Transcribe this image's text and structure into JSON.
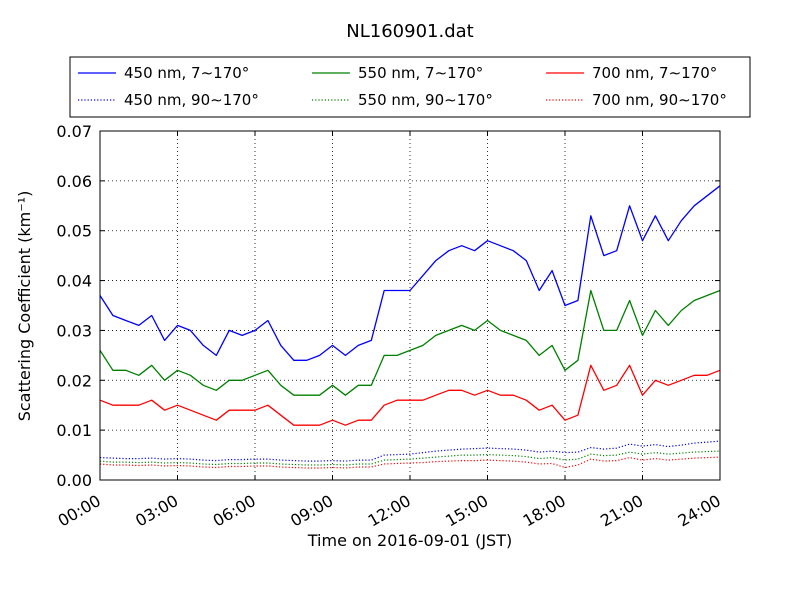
{
  "chart_data": {
    "type": "line",
    "title": "NL160901.dat",
    "xlabel": "Time on 2016-09-01 (JST)",
    "ylabel": "Scattering Coefficient (km⁻¹)",
    "xlim": [
      "2016-09-01 00:00",
      "2016-09-02 00:00"
    ],
    "ylim": [
      0,
      0.07
    ],
    "x_ticks": [
      "00:00",
      "03:00",
      "06:00",
      "09:00",
      "12:00",
      "15:00",
      "18:00",
      "21:00",
      "24:00"
    ],
    "x_tick_hours": [
      0,
      3,
      6,
      9,
      12,
      15,
      18,
      21,
      24
    ],
    "y_ticks": [
      "0.00",
      "0.01",
      "0.02",
      "0.03",
      "0.04",
      "0.05",
      "0.06",
      "0.07"
    ],
    "y_tick_values": [
      0,
      0.01,
      0.02,
      0.03,
      0.04,
      0.05,
      0.06,
      0.07
    ],
    "grid": true,
    "legend_position": "top",
    "x_hours": [
      0,
      0.5,
      1,
      1.5,
      2,
      2.5,
      3,
      3.5,
      4,
      4.5,
      5,
      5.5,
      6,
      6.5,
      7,
      7.5,
      8,
      8.5,
      9,
      9.5,
      10,
      10.5,
      11,
      11.5,
      12,
      12.5,
      13,
      13.5,
      14,
      14.5,
      15,
      15.5,
      16,
      16.5,
      17,
      17.5,
      18,
      18.5,
      19,
      19.5,
      20,
      20.5,
      21,
      21.5,
      22,
      22.5,
      23,
      23.5,
      24
    ],
    "series": [
      {
        "name": "450 nm, 7∼170°",
        "color": "#0000ff",
        "style": "solid",
        "values": [
          0.037,
          0.033,
          0.032,
          0.031,
          0.033,
          0.028,
          0.031,
          0.03,
          0.027,
          0.025,
          0.03,
          0.029,
          0.03,
          0.032,
          0.027,
          0.024,
          0.024,
          0.025,
          0.027,
          0.025,
          0.027,
          0.028,
          0.038,
          0.038,
          0.038,
          0.041,
          0.044,
          0.046,
          0.047,
          0.046,
          0.048,
          0.047,
          0.046,
          0.044,
          0.038,
          0.042,
          0.035,
          0.036,
          0.053,
          0.045,
          0.046,
          0.055,
          0.048,
          0.053,
          0.048,
          0.052,
          0.055,
          0.057,
          0.059
        ]
      },
      {
        "name": "450 nm, 90∼170°",
        "color": "#0000ff",
        "style": "dotted",
        "values": [
          0.0045,
          0.0044,
          0.0043,
          0.0043,
          0.0044,
          0.0042,
          0.0043,
          0.0042,
          0.004,
          0.0039,
          0.0041,
          0.0041,
          0.0042,
          0.0042,
          0.004,
          0.0039,
          0.0038,
          0.0038,
          0.0039,
          0.0038,
          0.004,
          0.004,
          0.005,
          0.0051,
          0.0052,
          0.0055,
          0.0058,
          0.006,
          0.0062,
          0.0063,
          0.0064,
          0.0063,
          0.0062,
          0.006,
          0.0056,
          0.0058,
          0.0055,
          0.0056,
          0.0065,
          0.0062,
          0.0064,
          0.0072,
          0.0068,
          0.0071,
          0.0067,
          0.007,
          0.0074,
          0.0076,
          0.0078
        ]
      },
      {
        "name": "550 nm, 7∼170°",
        "color": "#008000",
        "style": "solid",
        "values": [
          0.026,
          0.022,
          0.022,
          0.021,
          0.023,
          0.02,
          0.022,
          0.021,
          0.019,
          0.018,
          0.02,
          0.02,
          0.021,
          0.022,
          0.019,
          0.017,
          0.017,
          0.017,
          0.019,
          0.017,
          0.019,
          0.019,
          0.025,
          0.025,
          0.026,
          0.027,
          0.029,
          0.03,
          0.031,
          0.03,
          0.032,
          0.03,
          0.029,
          0.028,
          0.025,
          0.027,
          0.022,
          0.024,
          0.038,
          0.03,
          0.03,
          0.036,
          0.029,
          0.034,
          0.031,
          0.034,
          0.036,
          0.037,
          0.038
        ]
      },
      {
        "name": "550 nm, 90∼170°",
        "color": "#008000",
        "style": "dotted",
        "values": [
          0.0038,
          0.0036,
          0.0036,
          0.0035,
          0.0036,
          0.0034,
          0.0035,
          0.0034,
          0.0032,
          0.0031,
          0.0033,
          0.0033,
          0.0034,
          0.0034,
          0.0032,
          0.0031,
          0.003,
          0.003,
          0.0031,
          0.003,
          0.0032,
          0.0032,
          0.004,
          0.0041,
          0.0042,
          0.0044,
          0.0046,
          0.0048,
          0.005,
          0.005,
          0.0051,
          0.005,
          0.0049,
          0.0047,
          0.0043,
          0.0045,
          0.004,
          0.0042,
          0.0052,
          0.0049,
          0.005,
          0.0056,
          0.0052,
          0.0055,
          0.0052,
          0.0054,
          0.0056,
          0.0057,
          0.0058
        ]
      },
      {
        "name": "700 nm, 7∼170°",
        "color": "#ff0000",
        "style": "solid",
        "values": [
          0.016,
          0.015,
          0.015,
          0.015,
          0.016,
          0.014,
          0.015,
          0.014,
          0.013,
          0.012,
          0.014,
          0.014,
          0.014,
          0.015,
          0.013,
          0.011,
          0.011,
          0.011,
          0.012,
          0.011,
          0.012,
          0.012,
          0.015,
          0.016,
          0.016,
          0.016,
          0.017,
          0.018,
          0.018,
          0.017,
          0.018,
          0.017,
          0.017,
          0.016,
          0.014,
          0.015,
          0.012,
          0.013,
          0.023,
          0.018,
          0.019,
          0.023,
          0.017,
          0.02,
          0.019,
          0.02,
          0.021,
          0.021,
          0.022
        ]
      },
      {
        "name": "700 nm, 90∼170°",
        "color": "#ff0000",
        "style": "dotted",
        "values": [
          0.0032,
          0.003,
          0.003,
          0.0029,
          0.003,
          0.0028,
          0.0029,
          0.0028,
          0.0026,
          0.0025,
          0.0027,
          0.0027,
          0.0028,
          0.0028,
          0.0026,
          0.0025,
          0.0024,
          0.0024,
          0.0025,
          0.0024,
          0.0026,
          0.0026,
          0.0032,
          0.0033,
          0.0034,
          0.0035,
          0.0037,
          0.0038,
          0.0039,
          0.0039,
          0.004,
          0.0039,
          0.0038,
          0.0036,
          0.0032,
          0.0033,
          0.0025,
          0.003,
          0.0042,
          0.0038,
          0.0039,
          0.0045,
          0.004,
          0.0043,
          0.004,
          0.0042,
          0.0044,
          0.0045,
          0.0046
        ]
      }
    ]
  }
}
